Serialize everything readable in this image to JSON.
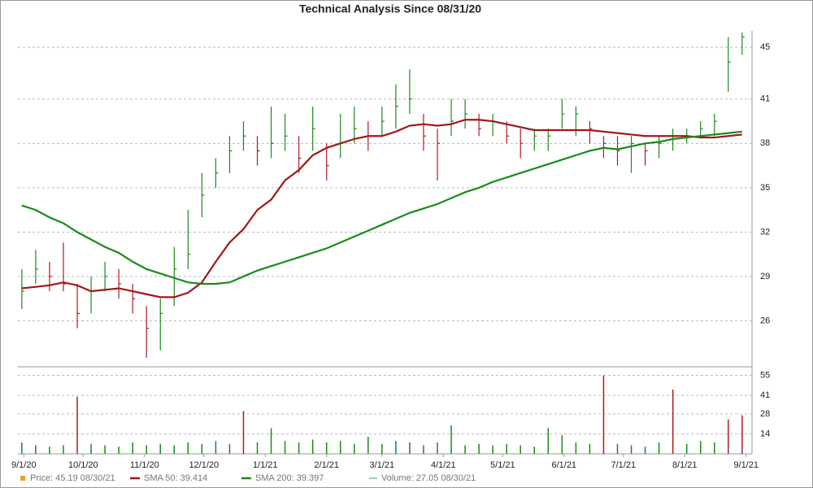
{
  "chart_data": {
    "type": "stock",
    "title": "Technical Analysis Since 08/31/20",
    "xlim": [
      -2,
      369
    ],
    "xticks": [
      {
        "value": 1,
        "label": "9/1/20"
      },
      {
        "value": 31,
        "label": "10/1/20"
      },
      {
        "value": 62,
        "label": "11/1/20"
      },
      {
        "value": 92,
        "label": "12/1/20"
      },
      {
        "value": 123,
        "label": "1/1/21"
      },
      {
        "value": 154,
        "label": "2/1/21"
      },
      {
        "value": 182,
        "label": "3/1/21"
      },
      {
        "value": 213,
        "label": "4/1/21"
      },
      {
        "value": 243,
        "label": "5/1/21"
      },
      {
        "value": 274,
        "label": "6/1/21"
      },
      {
        "value": 304,
        "label": "7/1/21"
      },
      {
        "value": 335,
        "label": "8/1/21"
      },
      {
        "value": 366,
        "label": "9/1/21"
      }
    ],
    "ylim": [
      23,
      45.5
    ],
    "yticks": [
      26,
      29,
      32,
      35,
      38,
      41,
      {
        "value": 44.5,
        "label": "45"
      }
    ],
    "y2lim": [
      0,
      57
    ],
    "y2ticks": [
      14,
      28,
      41,
      55
    ],
    "x": [
      0,
      7,
      14,
      21,
      28,
      35,
      42,
      49,
      56,
      63,
      70,
      77,
      84,
      91,
      98,
      105,
      112,
      119,
      126,
      133,
      140,
      147,
      154,
      161,
      168,
      175,
      182,
      189,
      196,
      203,
      210,
      217,
      224,
      231,
      238,
      245,
      252,
      259,
      266,
      273,
      280,
      287,
      294,
      301,
      308,
      315,
      322,
      329,
      336,
      343,
      350,
      357,
      364
    ],
    "up_color": "#1a8a1a",
    "down_color": "#b01c1c",
    "price": {
      "name": "Price: 45.19  08/30/21",
      "color": "#f0a020",
      "high": [
        29.5,
        30.8,
        30.0,
        31.3,
        28.5,
        29.0,
        30.0,
        29.5,
        28.5,
        27.0,
        27.5,
        31.0,
        33.5,
        36.0,
        37.0,
        38.5,
        39.5,
        38.5,
        40.5,
        40.0,
        38.5,
        40.5,
        38.0,
        40.0,
        40.5,
        39.5,
        40.5,
        42.0,
        43.0,
        40.0,
        39.0,
        41.0,
        41.0,
        40.0,
        40.0,
        39.5,
        39.0,
        39.0,
        39.0,
        41.0,
        40.5,
        39.5,
        38.5,
        38.5,
        38.5,
        38.0,
        38.5,
        39.0,
        39.0,
        39.5,
        40.0,
        45.2,
        45.5
      ],
      "low": [
        26.8,
        28.5,
        28.0,
        28.0,
        25.5,
        26.5,
        28.0,
        27.5,
        26.5,
        23.5,
        24.0,
        27.0,
        29.5,
        33.0,
        35.0,
        36.0,
        37.5,
        36.5,
        37.0,
        37.5,
        36.0,
        37.5,
        35.5,
        37.0,
        38.0,
        37.5,
        38.5,
        39.0,
        40.0,
        37.5,
        35.5,
        38.5,
        39.0,
        38.5,
        38.5,
        38.0,
        37.0,
        37.5,
        37.5,
        39.0,
        38.5,
        38.0,
        37.0,
        36.5,
        36.0,
        36.5,
        37.0,
        37.5,
        38.0,
        38.5,
        38.5,
        41.5,
        44.0
      ],
      "close": [
        28.0,
        29.5,
        29.0,
        28.5,
        26.5,
        28.0,
        29.0,
        28.5,
        27.5,
        25.5,
        26.5,
        29.5,
        30.5,
        34.5,
        36.0,
        37.5,
        38.5,
        37.5,
        38.0,
        38.5,
        37.0,
        39.0,
        36.5,
        38.0,
        39.0,
        38.5,
        39.5,
        40.5,
        41.0,
        38.5,
        38.0,
        39.5,
        40.0,
        39.0,
        39.5,
        38.5,
        38.0,
        38.5,
        38.5,
        40.0,
        40.0,
        39.0,
        38.0,
        37.5,
        38.0,
        37.5,
        38.0,
        38.5,
        38.5,
        39.0,
        39.5,
        43.5,
        45.2
      ]
    },
    "series": [
      {
        "name": "SMA 50: 39.414",
        "color": "#a01818",
        "values": [
          28.2,
          28.3,
          28.4,
          28.6,
          28.4,
          28.0,
          28.1,
          28.2,
          28.0,
          27.8,
          27.6,
          27.6,
          27.9,
          28.6,
          30.0,
          31.3,
          32.2,
          33.5,
          34.2,
          35.5,
          36.2,
          37.2,
          37.7,
          38.0,
          38.3,
          38.5,
          38.5,
          38.8,
          39.2,
          39.3,
          39.2,
          39.3,
          39.6,
          39.6,
          39.5,
          39.3,
          39.1,
          38.9,
          38.9,
          38.9,
          38.9,
          38.9,
          38.8,
          38.7,
          38.6,
          38.5,
          38.5,
          38.5,
          38.5,
          38.4,
          38.4,
          38.5,
          38.6
        ]
      },
      {
        "name": "SMA 200: 39.397",
        "color": "#1a8a1a",
        "values": [
          33.8,
          33.5,
          33.0,
          32.6,
          32.0,
          31.5,
          31.0,
          30.6,
          30.0,
          29.5,
          29.2,
          28.9,
          28.6,
          28.5,
          28.5,
          28.6,
          29.0,
          29.4,
          29.7,
          30.0,
          30.3,
          30.6,
          30.9,
          31.3,
          31.7,
          32.1,
          32.5,
          32.9,
          33.3,
          33.6,
          33.9,
          34.3,
          34.7,
          35.0,
          35.4,
          35.7,
          36.0,
          36.3,
          36.6,
          36.9,
          37.2,
          37.5,
          37.7,
          37.6,
          37.8,
          38.0,
          38.1,
          38.3,
          38.4,
          38.5,
          38.6,
          38.7,
          38.8
        ]
      }
    ],
    "volume": {
      "name": "Volume: 27.05  08/30/21",
      "color": "#20a0a0",
      "axis": "y2",
      "values": [
        8,
        6,
        5,
        6,
        40,
        7,
        6,
        5,
        8,
        6,
        7,
        6,
        8,
        7,
        9,
        7,
        30,
        8,
        18,
        9,
        8,
        10,
        8,
        9,
        7,
        12,
        7,
        9,
        8,
        6,
        8,
        20,
        6,
        7,
        6,
        7,
        6,
        5,
        18,
        13,
        8,
        7,
        55,
        7,
        6,
        5,
        8,
        45,
        7,
        9,
        8,
        24,
        27
      ]
    }
  }
}
